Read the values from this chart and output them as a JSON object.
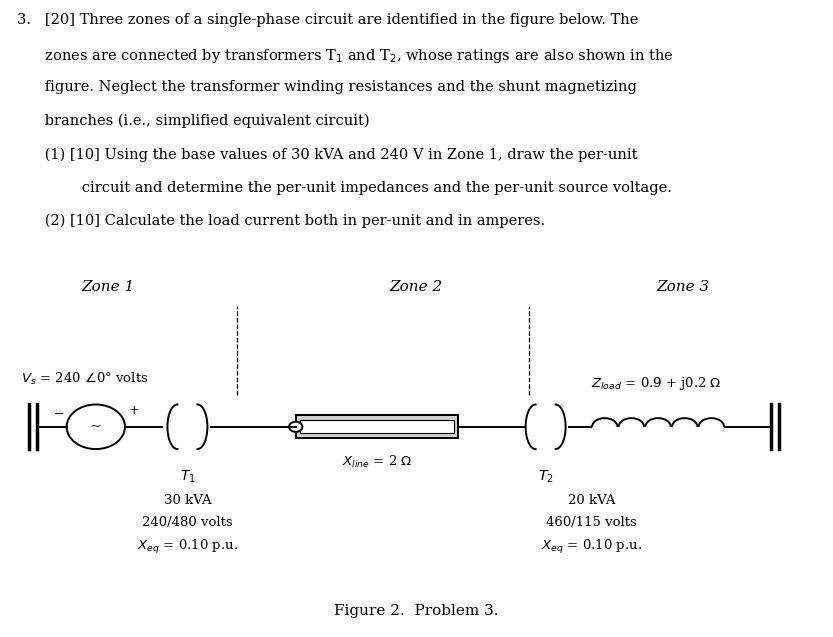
{
  "zone1_label": "Zone 1",
  "zone2_label": "Zone 2",
  "zone3_label": "Zone 3",
  "T1_label": "T$_1$",
  "T2_label": "T$_2$",
  "T1_kva": "30 kVA",
  "T1_volts": "240/480 volts",
  "T1_xeq": "$X_{eq}$ = 0.10 p.u.",
  "T2_kva": "20 kVA",
  "T2_volts": "460/115 volts",
  "T2_xeq": "$X_{eq}$ = 0.10 p.u.",
  "xline_label": "$X_{line}$ = 2 $\\Omega$",
  "zload_label": "$Z_{load}$ = 0.9 + j0.2 $\\Omega$",
  "figure_caption": "Figure 2.  Problem 3.",
  "bg_color": "#ffffff",
  "text_color": "#000000",
  "line1": "3.   [20] Three zones of a single-phase circuit are identified in the figure below. The",
  "line2": "      zones are connected by transformers T$_1$ and T$_2$, whose ratings are also shown in the",
  "line3": "      figure. Neglect the transformer winding resistances and the shunt magnetizing",
  "line4": "      branches (i.e., simplified equivalent circuit)",
  "line5": "      (1) [10] Using the base values of 30 kVA and 240 V in Zone 1, draw the per-unit",
  "line6": "              circuit and determine the per-unit impedances and the per-unit source voltage.",
  "line7": "      (2) [10] Calculate the load current both in per-unit and in amperes."
}
